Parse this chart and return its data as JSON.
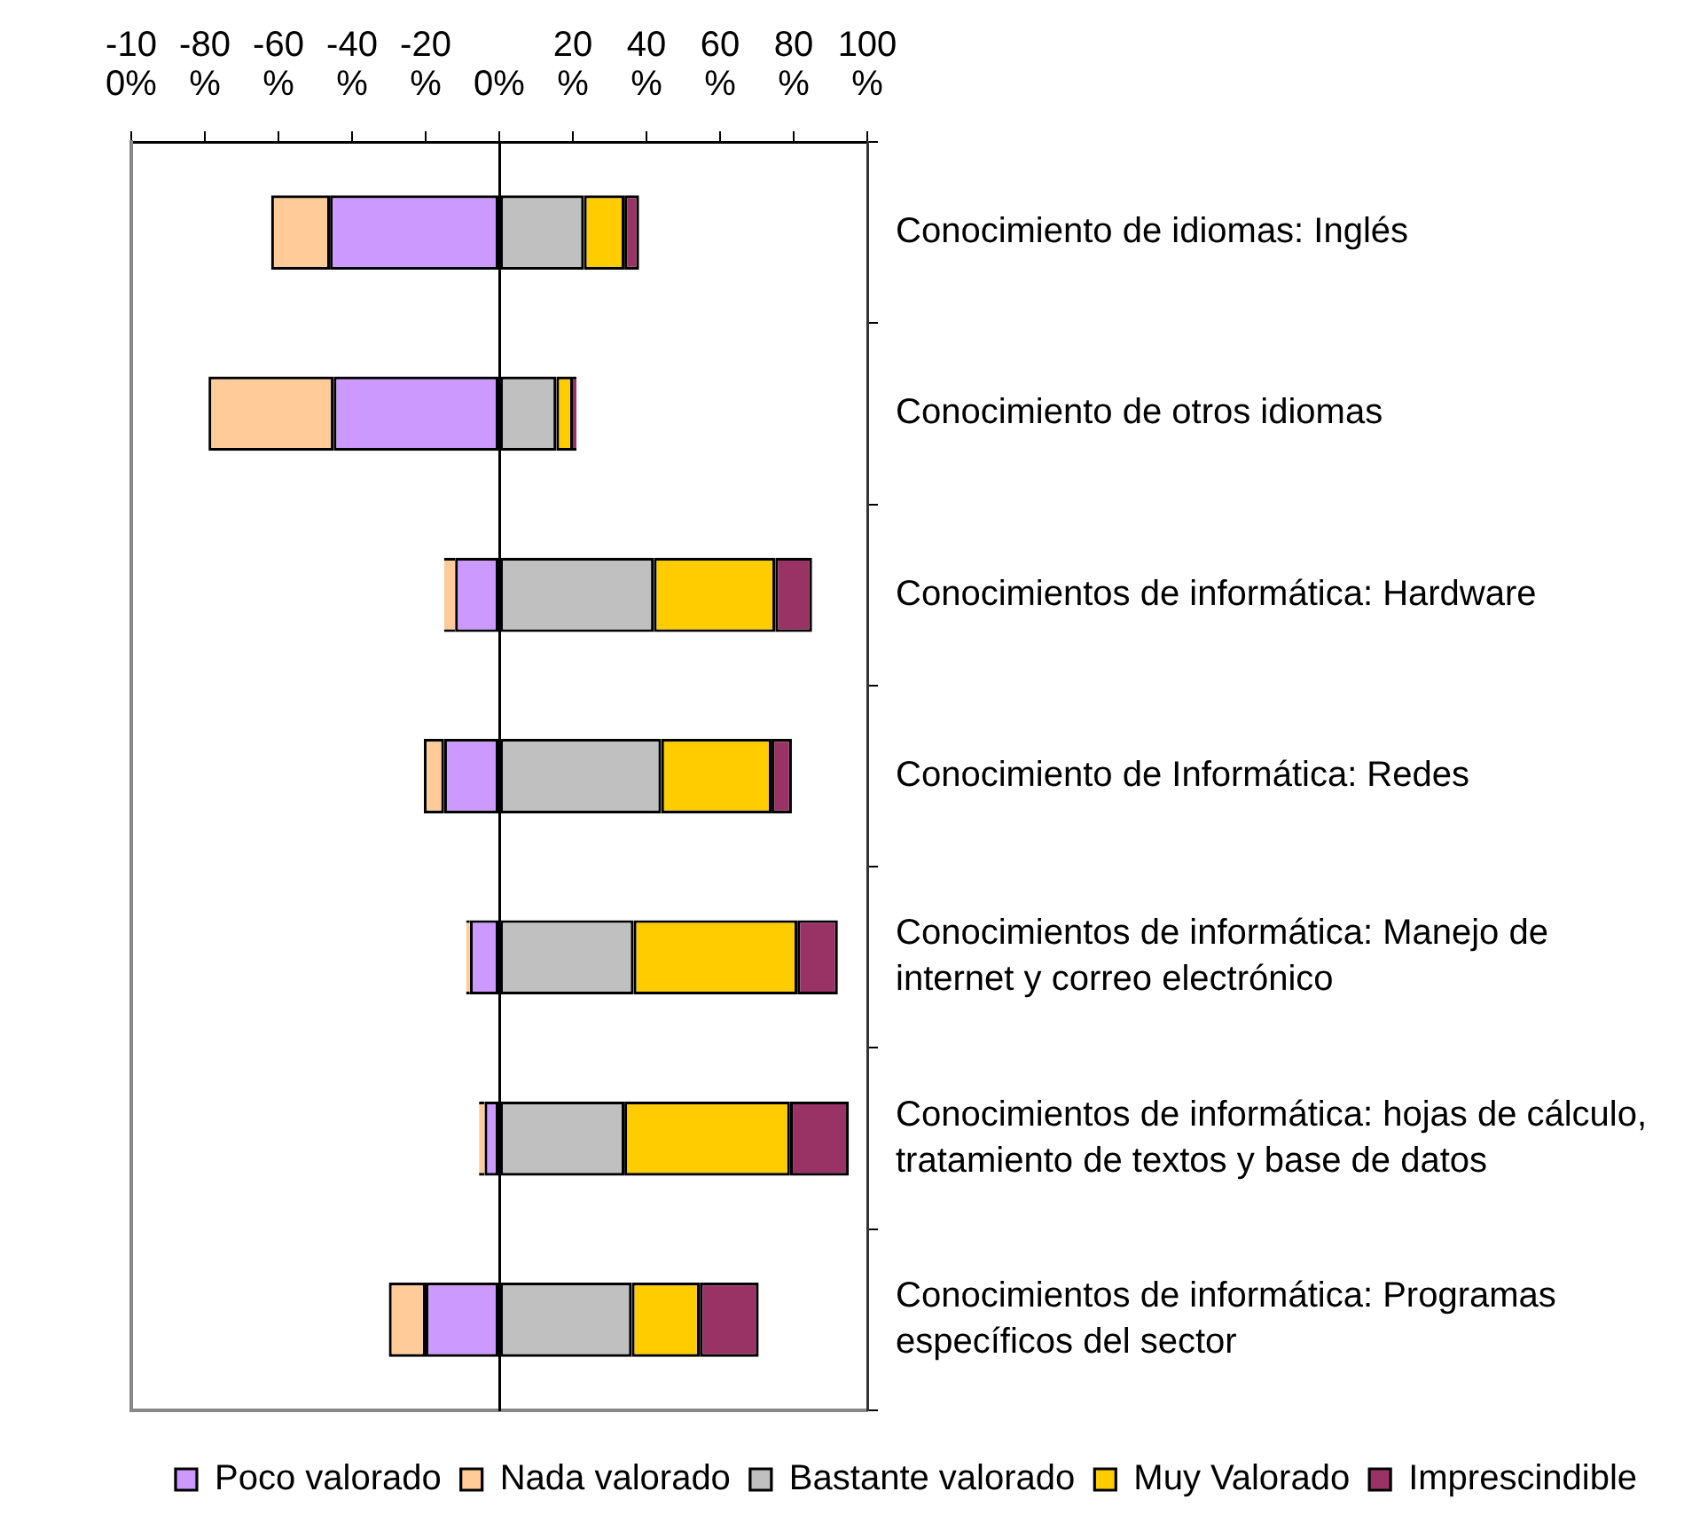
{
  "chart_data": {
    "type": "bar",
    "orientation": "horizontal",
    "stacked": true,
    "categories": [
      "Conocimiento de idiomas: Inglés",
      "Conocimiento de otros idiomas",
      "Conocimientos de informática: Hardware",
      "Conocimiento de Informática: Redes",
      "Conocimientos de informática: Manejo de internet y correo electrónico",
      "Conocimientos de informática: hojas de cálculo, tratamiento de textos y base de datos",
      "Conocimientos de informática: Programas específicos del sector"
    ],
    "series": [
      {
        "name": "Poco valorado",
        "color": "#cc99ff",
        "values": [
          -46,
          -45,
          -12,
          -15,
          -8,
          -4,
          -20
        ]
      },
      {
        "name": "Nada valorado",
        "color": "#ffcc99",
        "values": [
          -16,
          -34,
          -3,
          -5.5,
          -1,
          -1.5,
          -10
        ]
      },
      {
        "name": "Bastante valorado",
        "color": "#c0c0c0",
        "values": [
          23,
          15.5,
          42,
          44,
          36.5,
          34,
          36
        ]
      },
      {
        "name": "Muy Valorado",
        "color": "#ffcc00",
        "values": [
          11,
          4.5,
          33,
          30,
          44.5,
          45,
          18.5
        ]
      },
      {
        "name": "Imprescindible",
        "color": "#993366",
        "values": [
          4,
          1,
          10,
          5.5,
          11,
          16,
          16
        ]
      }
    ],
    "xlim": [
      -100,
      100
    ],
    "xticks": [
      {
        "value": -100,
        "label": "-100%"
      },
      {
        "value": -80,
        "label": "-80%"
      },
      {
        "value": -60,
        "label": "-60%"
      },
      {
        "value": -40,
        "label": "-40%"
      },
      {
        "value": -20,
        "label": "-20%"
      },
      {
        "value": 0,
        "label": "0%"
      },
      {
        "value": 20,
        "label": "20%"
      },
      {
        "value": 40,
        "label": "40%"
      },
      {
        "value": 60,
        "label": "60%"
      },
      {
        "value": 80,
        "label": "80%"
      },
      {
        "value": 100,
        "label": "100%"
      }
    ],
    "legend": "bottom"
  }
}
